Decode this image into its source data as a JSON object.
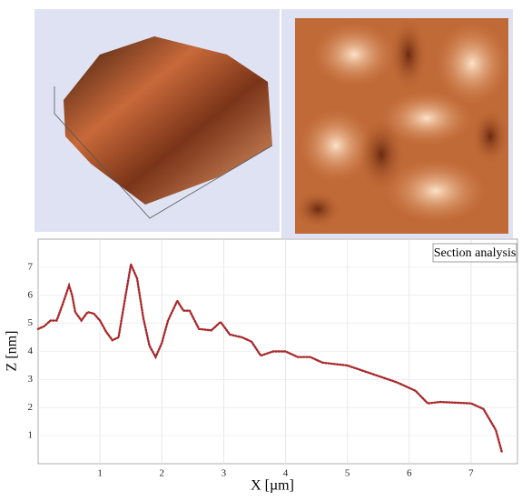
{
  "chart_data": {
    "type": "line",
    "x": [
      0,
      0.1,
      0.2,
      0.3,
      0.4,
      0.5,
      0.55,
      0.6,
      0.7,
      0.8,
      0.9,
      1.0,
      1.1,
      1.2,
      1.3,
      1.4,
      1.5,
      1.6,
      1.7,
      1.8,
      1.9,
      2.0,
      2.1,
      2.25,
      2.35,
      2.45,
      2.6,
      2.8,
      2.95,
      3.1,
      3.3,
      3.45,
      3.6,
      3.8,
      4.0,
      4.2,
      4.4,
      4.6,
      5.0,
      5.4,
      5.8,
      6.1,
      6.3,
      6.5,
      7.0,
      7.2,
      7.4,
      7.5
    ],
    "values": [
      4.8,
      4.9,
      5.1,
      5.1,
      5.7,
      6.35,
      6.0,
      5.4,
      5.1,
      5.4,
      5.35,
      5.1,
      4.7,
      4.4,
      4.5,
      5.8,
      7.1,
      6.6,
      5.2,
      4.2,
      3.8,
      4.3,
      5.1,
      5.8,
      5.45,
      5.45,
      4.8,
      4.75,
      5.05,
      4.6,
      4.5,
      4.35,
      3.85,
      4.0,
      4.0,
      3.8,
      3.8,
      3.6,
      3.5,
      3.2,
      2.9,
      2.6,
      2.15,
      2.2,
      2.15,
      1.95,
      1.2,
      0.4
    ],
    "color": "#a8282a",
    "xlim": [
      0,
      7.75
    ],
    "ylim": [
      0,
      8
    ],
    "xticks": [
      1,
      2,
      3,
      4,
      5,
      6,
      7
    ],
    "yticks": [
      1,
      2,
      3,
      4,
      5,
      6,
      7
    ],
    "xlabel": "X [µm]",
    "ylabel": "Z [nm]",
    "annotation": "Section analysis",
    "grid": true
  }
}
